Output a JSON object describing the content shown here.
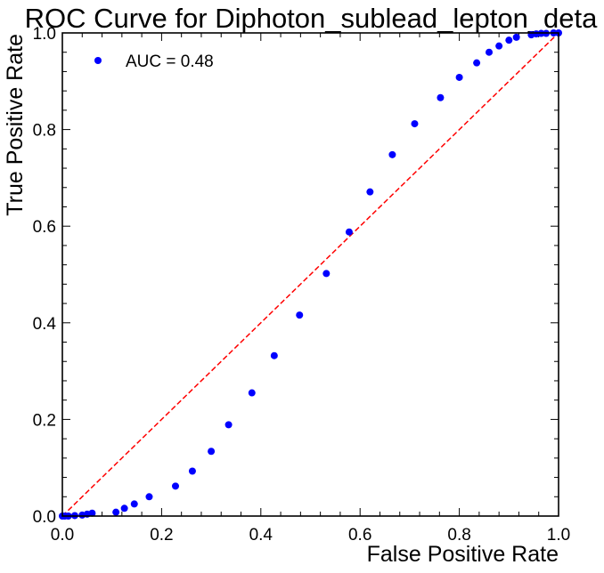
{
  "chart_data": {
    "type": "scatter",
    "title": "ROC Curve for Diphoton_sublead_lepton_deta",
    "xlabel": "False Positive Rate",
    "ylabel": "True Positive Rate",
    "xlim": [
      0.0,
      1.0
    ],
    "ylim": [
      0.0,
      1.0
    ],
    "xticks": [
      "0.0",
      "0.2",
      "0.4",
      "0.6",
      "0.8",
      "1.0"
    ],
    "yticks": [
      "0.0",
      "0.2",
      "0.4",
      "0.6",
      "0.8",
      "1.0"
    ],
    "grid": false,
    "legend": {
      "position": "top-left",
      "entries": [
        "AUC = 0.48"
      ]
    },
    "series": [
      {
        "name": "AUC = 0.48",
        "marker": "circle",
        "color": "#0000ff",
        "x": [
          0.0,
          0.005,
          0.012,
          0.025,
          0.04,
          0.05,
          0.06,
          0.108,
          0.125,
          0.145,
          0.175,
          0.228,
          0.262,
          0.3,
          0.335,
          0.382,
          0.427,
          0.478,
          0.532,
          0.578,
          0.62,
          0.665,
          0.71,
          0.762,
          0.8,
          0.835,
          0.86,
          0.88,
          0.9,
          0.915,
          0.945,
          0.955,
          0.965,
          0.975,
          0.99,
          1.0
        ],
        "y": [
          0.0,
          0.0,
          0.0,
          0.001,
          0.002,
          0.004,
          0.006,
          0.008,
          0.016,
          0.025,
          0.04,
          0.062,
          0.093,
          0.134,
          0.189,
          0.255,
          0.332,
          0.416,
          0.502,
          0.588,
          0.671,
          0.748,
          0.812,
          0.866,
          0.908,
          0.938,
          0.96,
          0.973,
          0.985,
          0.991,
          0.996,
          0.998,
          0.999,
          0.999,
          1.0,
          1.0
        ]
      },
      {
        "name": "",
        "style": "dashed",
        "color": "#ff0000",
        "x": [
          0.0,
          1.0
        ],
        "y": [
          0.0,
          1.0
        ]
      }
    ]
  }
}
